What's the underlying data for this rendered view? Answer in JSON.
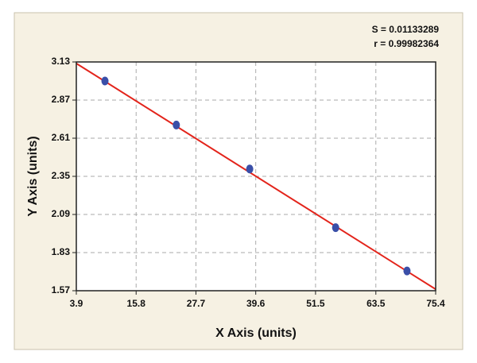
{
  "chart_data": {
    "type": "scatter",
    "x_label": "X Axis (units)",
    "y_label": "Y Axis (units)",
    "annotations": [
      "S = 0.01133289",
      "r = 0.99982364"
    ],
    "series": [
      {
        "x": [
          9.6,
          23.8,
          38.4,
          55.5,
          69.7
        ],
        "values": [
          3.0,
          2.7,
          2.4,
          2.0,
          1.705
        ],
        "color": "#3a4fa8"
      }
    ],
    "fit_line": {
      "x": [
        3.9,
        75.4
      ],
      "values": [
        3.12,
        1.58
      ],
      "color": "#e3241b"
    },
    "xlim": [
      3.9,
      75.4
    ],
    "xticks": [
      3.9,
      15.8,
      27.7,
      39.6,
      51.5,
      63.5,
      75.4
    ],
    "ylim": [
      1.57,
      3.13
    ],
    "yticks": [
      1.57,
      1.83,
      2.09,
      2.35,
      2.61,
      2.87,
      3.13
    ],
    "grid": true
  }
}
